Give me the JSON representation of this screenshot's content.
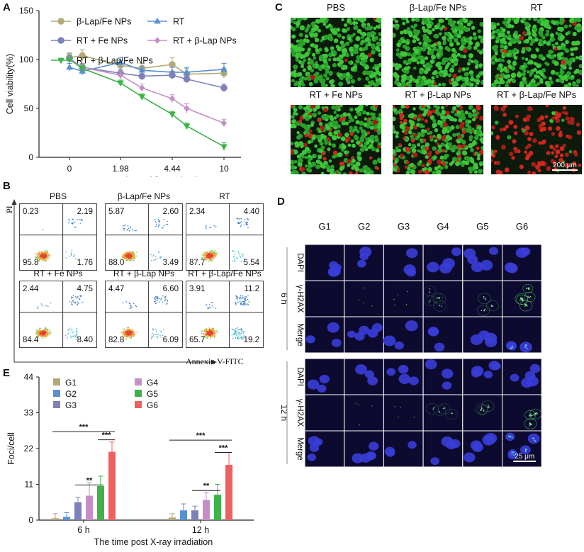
{
  "panels": {
    "a": "A",
    "b": "B",
    "c": "C",
    "d": "D",
    "e": "E"
  },
  "chart_data": [
    {
      "type": "line",
      "panel": "A",
      "x": [
        0,
        0.5,
        1.98,
        3,
        4.44,
        6,
        10
      ],
      "xticks": [
        "0",
        "1.98",
        "4.44",
        "10"
      ],
      "xtick_values": [
        0,
        1.98,
        4.44,
        10
      ],
      "xlabel": "Concentrations of β-Lap (μM)",
      "ylabel": "Cell viability(%)",
      "ylim": [
        0,
        150
      ],
      "yticks": [
        0,
        50,
        100,
        150
      ],
      "series": [
        {
          "name": "β-Lap/Fe NPs",
          "color": "#b5ab78",
          "marker": "circle",
          "values": [
            102,
            104,
            94,
            91,
            95,
            85,
            86
          ],
          "err": [
            5,
            6,
            5,
            5,
            7,
            6,
            5
          ]
        },
        {
          "name": "RT",
          "color": "#5b8fd0",
          "marker": "triangle-up",
          "values": [
            92,
            88,
            97,
            89,
            87,
            87,
            90
          ],
          "err": [
            4,
            4,
            5,
            4,
            5,
            5,
            6
          ]
        },
        {
          "name": "RT + Fe NPs",
          "color": "#7d82b8",
          "marker": "circle",
          "values": [
            101,
            92,
            86,
            83,
            84,
            80,
            71
          ],
          "err": [
            5,
            4,
            4,
            4,
            4,
            4,
            4
          ]
        },
        {
          "name": "RT + β-Lap NPs",
          "color": "#c58fc5",
          "marker": "diamond",
          "values": [
            101,
            92,
            84,
            71,
            60,
            50,
            35
          ],
          "err": [
            4,
            4,
            4,
            4,
            4,
            5,
            4
          ]
        },
        {
          "name": "RT + β-Lap/Fe NPs",
          "color": "#3fb24a",
          "marker": "triangle-down",
          "values": [
            100,
            91,
            76,
            62,
            44,
            32,
            11
          ],
          "err": [
            4,
            4,
            3,
            3,
            3,
            3,
            4
          ]
        }
      ]
    },
    {
      "type": "bar",
      "panel": "E",
      "categories": [
        "6 h",
        "12 h"
      ],
      "xlabel": "The time post X-ray irradiation",
      "ylabel": "Foci/cell",
      "ylim": [
        0,
        44
      ],
      "yticks": [
        0,
        11,
        22,
        33,
        44
      ],
      "series": [
        {
          "name": "G1",
          "color": "#b2a77a",
          "values": [
            0.6,
            0.8
          ],
          "err": [
            1.4,
            1.2
          ]
        },
        {
          "name": "G2",
          "color": "#5b8fd0",
          "values": [
            1.0,
            3.0
          ],
          "err": [
            1.3,
            2.0
          ]
        },
        {
          "name": "G3",
          "color": "#7d82b8",
          "values": [
            5.5,
            3.0
          ],
          "err": [
            1.5,
            1.3
          ]
        },
        {
          "name": "G4",
          "color": "#c58fc5",
          "values": [
            7.5,
            6.2
          ],
          "err": [
            4.0,
            2.3
          ]
        },
        {
          "name": "G5",
          "color": "#3fb24a",
          "values": [
            10.5,
            7.8
          ],
          "err": [
            3.0,
            3.2
          ]
        },
        {
          "name": "G6",
          "color": "#ee6161",
          "values": [
            21.0,
            17.0
          ],
          "err": [
            3.0,
            3.8
          ]
        }
      ],
      "significance": [
        {
          "group": "6 h",
          "from": "G6",
          "to": "G1",
          "label": "***"
        },
        {
          "group": "6 h",
          "from": "G6",
          "to": "G5",
          "label": "***"
        },
        {
          "group": "6 h",
          "from": "G5",
          "to": "G3",
          "label": "**"
        },
        {
          "group": "12 h",
          "from": "G6",
          "to": "G1",
          "label": "***"
        },
        {
          "group": "12 h",
          "from": "G6",
          "to": "G5",
          "label": "***"
        },
        {
          "group": "12 h",
          "from": "G5",
          "to": "G3",
          "label": "**"
        }
      ]
    }
  ],
  "panel_b": {
    "xlabel": "Annexin V-FITC",
    "ylabel": "PI",
    "plots": [
      {
        "title": "PBS",
        "q": [
          "0.23",
          "2.19",
          "95.8",
          "1.76"
        ]
      },
      {
        "title": "β-Lap/Fe NPs",
        "q": [
          "5.87",
          "2.60",
          "88.0",
          "3.49"
        ]
      },
      {
        "title": "RT",
        "q": [
          "2.34",
          "4.40",
          "87.7",
          "5.54"
        ]
      },
      {
        "title": "RT + Fe NPs",
        "q": [
          "2.44",
          "4.75",
          "84.4",
          "8.40"
        ]
      },
      {
        "title": "RT + β-Lap NPs",
        "q": [
          "4.47",
          "6.60",
          "82.8",
          "6.09"
        ]
      },
      {
        "title": "RT + β-Lap/Fe NPs",
        "q": [
          "3.91",
          "11.2",
          "65.7",
          "19.2"
        ]
      }
    ]
  },
  "panel_c": {
    "titles": [
      "PBS",
      "β-Lap/Fe NPs",
      "RT",
      "RT + Fe NPs",
      "RT + β-Lap NPs",
      "RT + β-Lap/Fe NPs"
    ],
    "red_fraction": [
      0.01,
      0.02,
      0.03,
      0.15,
      0.25,
      0.85
    ],
    "scale_bar": "200 μm"
  },
  "panel_d": {
    "groups": [
      "G1",
      "G2",
      "G3",
      "G4",
      "G5",
      "G6"
    ],
    "times": [
      "6 h",
      "12 h"
    ],
    "rows": [
      "DAPI",
      "γ-H2AX",
      "Merge"
    ],
    "scale_bar": "25 μm",
    "foci_level": [
      0.0,
      0.05,
      0.1,
      0.35,
      0.5,
      0.9
    ]
  }
}
